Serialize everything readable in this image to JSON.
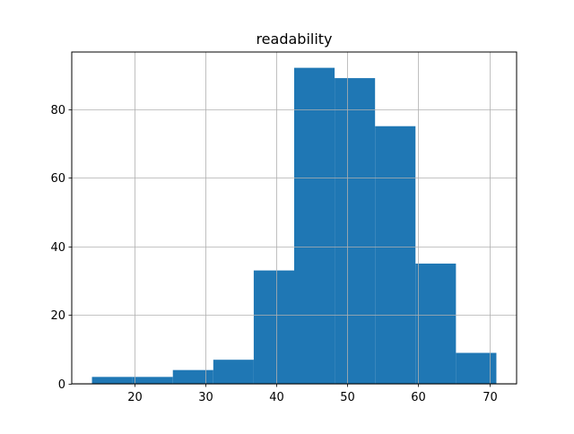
{
  "chart_data": {
    "type": "bar",
    "title": "readability",
    "xlabel": "",
    "ylabel": "",
    "bin_edges": [
      14.0,
      19.7,
      25.4,
      31.1,
      36.8,
      42.5,
      48.2,
      53.9,
      59.6,
      65.3,
      71.0
    ],
    "values": [
      2,
      2,
      4,
      7,
      33,
      92,
      89,
      75,
      35,
      9
    ],
    "xlim": [
      11.15,
      73.85
    ],
    "ylim": [
      0,
      96.6
    ],
    "xticks": [
      20,
      30,
      40,
      50,
      60,
      70
    ],
    "yticks": [
      0,
      20,
      40,
      60,
      80
    ],
    "grid": true,
    "bar_color": "#1f77b4",
    "grid_color": "#b0b0b0"
  }
}
